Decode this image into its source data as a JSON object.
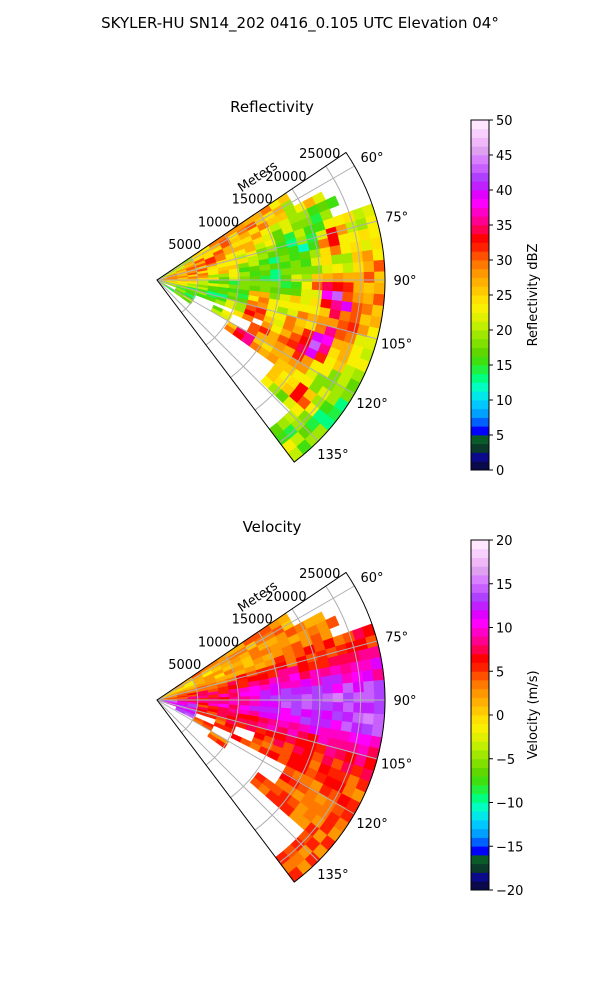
{
  "figure": {
    "suptitle": "SKYLER-HU  SN14_202  0416_0.105 UTC Elevation 04°",
    "range_axis_label": "Meters"
  },
  "chart_data": [
    {
      "type": "heatmap",
      "projection": "polar-sector",
      "title": "Reflectivity",
      "theta_range_deg": [
        56,
        143
      ],
      "theta_ticks": [
        "60°",
        "75°",
        "90°",
        "105°",
        "120°",
        "135°"
      ],
      "theta_tick_values": [
        60,
        75,
        90,
        105,
        120,
        135
      ],
      "r_range": [
        0,
        28000
      ],
      "r_ticks": [
        "5000",
        "10000",
        "15000",
        "20000",
        "25000"
      ],
      "r_tick_values": [
        5000,
        10000,
        15000,
        20000,
        25000
      ],
      "grid": true,
      "colorbar": {
        "label": "Reflectivity dBZ",
        "vmin": 0,
        "vmax": 50,
        "ticks": [
          "0",
          "5",
          "10",
          "15",
          "20",
          "25",
          "30",
          "35",
          "40",
          "45",
          "50"
        ],
        "colors": [
          "#0a0a4a",
          "#0a0a8a",
          "#0a3a2a",
          "#0a5a2a",
          "#0000ff",
          "#0060ff",
          "#00a0ff",
          "#00c8ff",
          "#00e8e8",
          "#00ffc0",
          "#00ff80",
          "#20f040",
          "#40e010",
          "#60d800",
          "#80e000",
          "#a0e800",
          "#c0f000",
          "#e0f000",
          "#f8f000",
          "#ffe000",
          "#ffc800",
          "#ffb000",
          "#ff9800",
          "#ff7800",
          "#ff5000",
          "#ff2000",
          "#ff0000",
          "#ff0050",
          "#ff0090",
          "#ff00c8",
          "#ff00ff",
          "#e000ff",
          "#c020ff",
          "#b040ff",
          "#c860ff",
          "#d880ff",
          "#e0a0f0",
          "#f0b8f8",
          "#f8d0ff",
          "#ffe8ff"
        ]
      }
    },
    {
      "type": "heatmap",
      "projection": "polar-sector",
      "title": "Velocity",
      "theta_range_deg": [
        56,
        143
      ],
      "theta_ticks": [
        "60°",
        "75°",
        "90°",
        "105°",
        "120°",
        "135°"
      ],
      "theta_tick_values": [
        60,
        75,
        90,
        105,
        120,
        135
      ],
      "r_range": [
        0,
        28000
      ],
      "r_ticks": [
        "5000",
        "10000",
        "15000",
        "20000",
        "25000"
      ],
      "r_tick_values": [
        5000,
        10000,
        15000,
        20000,
        25000
      ],
      "grid": true,
      "colorbar": {
        "label": "Velocity (m/s)",
        "vmin": -20,
        "vmax": 20,
        "ticks": [
          "−20",
          "−15",
          "−10",
          "−5",
          "0",
          "5",
          "10",
          "15",
          "20"
        ],
        "colors": [
          "#0a0a4a",
          "#0a0a8a",
          "#0a3a2a",
          "#0a5a2a",
          "#0000ff",
          "#0060ff",
          "#00a0ff",
          "#00c8ff",
          "#00e8e8",
          "#00ffc0",
          "#00ff80",
          "#20f040",
          "#40e010",
          "#60d800",
          "#80e000",
          "#a0e800",
          "#c0f000",
          "#e0f000",
          "#f8f000",
          "#ffe000",
          "#ffc800",
          "#ffb000",
          "#ff9800",
          "#ff7800",
          "#ff5000",
          "#ff2000",
          "#ff0000",
          "#ff0050",
          "#ff0090",
          "#ff00c8",
          "#ff00ff",
          "#e000ff",
          "#c020ff",
          "#b040ff",
          "#c860ff",
          "#d880ff",
          "#e0a0f0",
          "#f0b8f8",
          "#f8d0ff",
          "#ffe8ff"
        ]
      }
    }
  ]
}
